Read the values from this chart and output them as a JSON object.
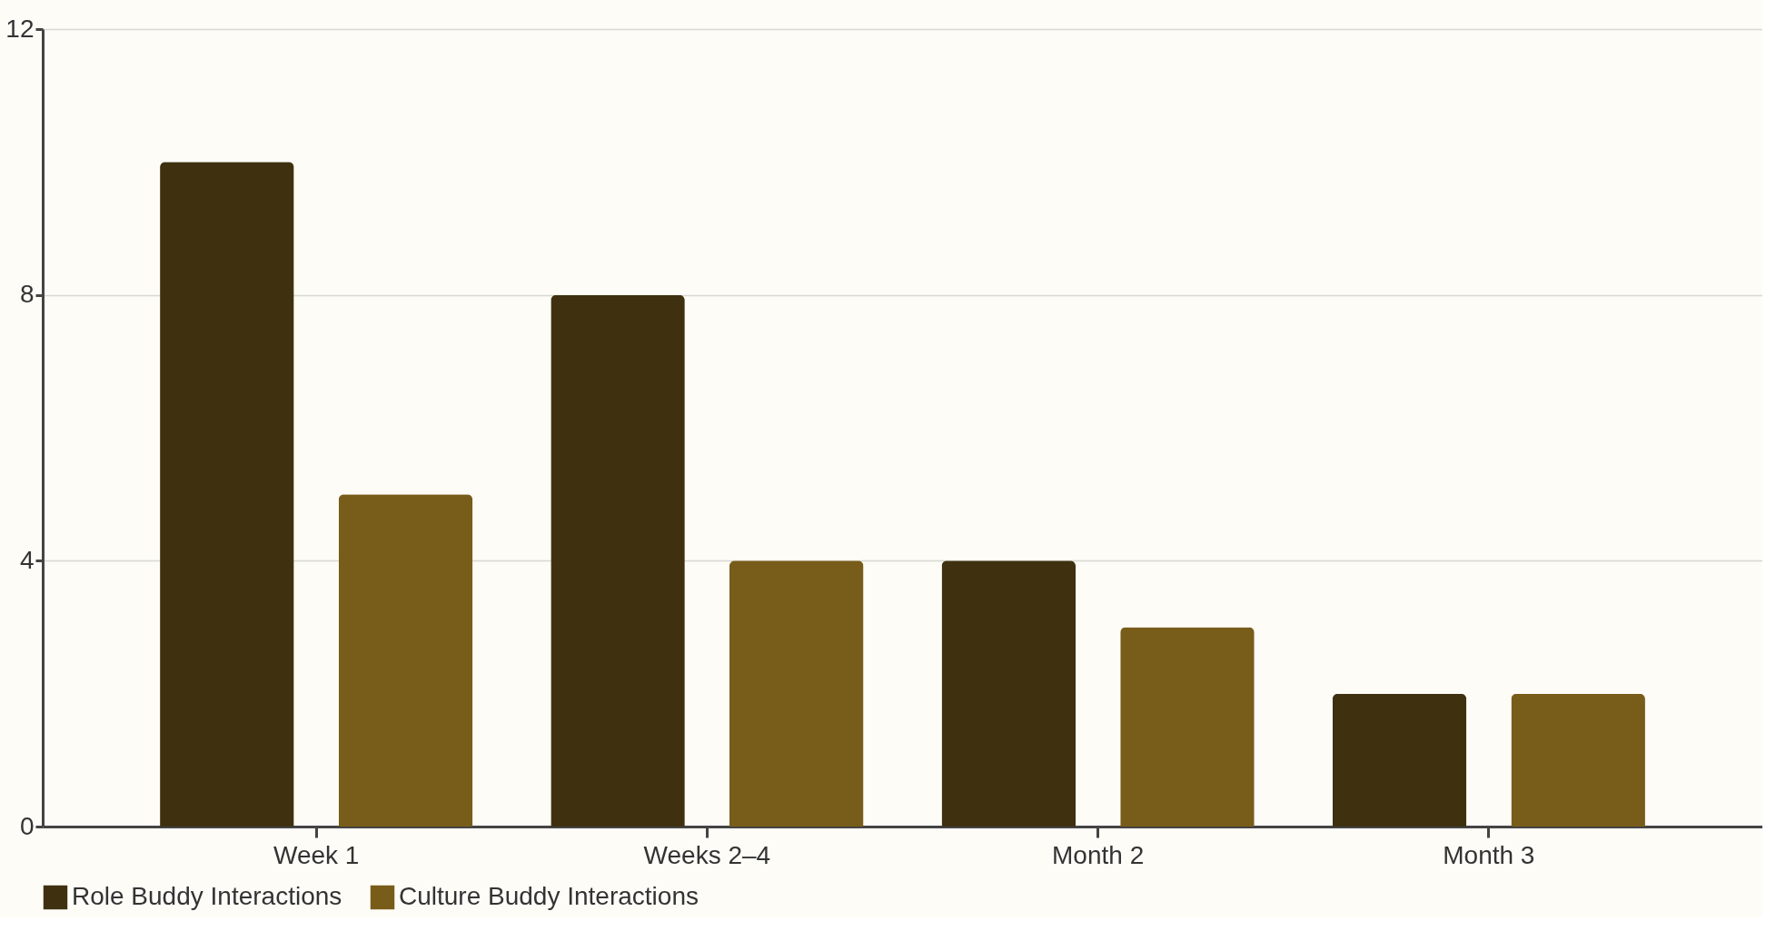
{
  "chart_data": {
    "type": "bar",
    "categories": [
      "Week 1",
      "Weeks 2–4",
      "Month 2",
      "Month 3"
    ],
    "series": [
      {
        "name": "Role Buddy Interactions",
        "color": "#3f3110",
        "values": [
          10,
          8,
          4,
          2
        ]
      },
      {
        "name": "Culture Buddy Interactions",
        "color": "#785c19",
        "values": [
          5,
          4,
          3,
          2
        ]
      }
    ],
    "ylim": [
      0,
      12
    ],
    "yticks": [
      0,
      4,
      8,
      12
    ],
    "grid": "y",
    "legend": "bottom"
  }
}
